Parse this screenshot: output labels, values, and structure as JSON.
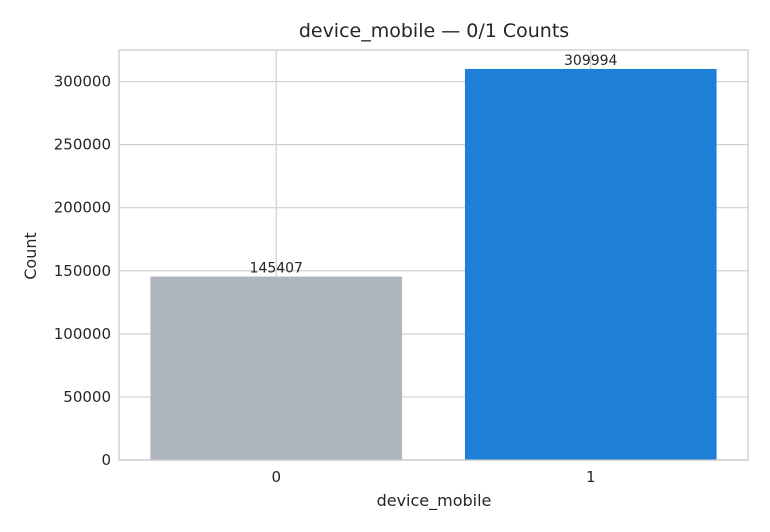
{
  "chart_data": {
    "type": "bar",
    "title": "device_mobile — 0/1 Counts",
    "xlabel": "device_mobile",
    "ylabel": "Count",
    "categories": [
      "0",
      "1"
    ],
    "values": [
      145407,
      309994
    ],
    "data_labels": [
      "145407",
      "309994"
    ],
    "colors": [
      "#adb5bd",
      "#1e7fd9"
    ],
    "ylim": [
      0,
      325000
    ],
    "yticks": [
      0,
      50000,
      100000,
      150000,
      200000,
      250000,
      300000
    ],
    "ytick_labels": [
      "0",
      "50000",
      "100000",
      "150000",
      "200000",
      "250000",
      "300000"
    ],
    "grid": true,
    "legend": "none"
  }
}
